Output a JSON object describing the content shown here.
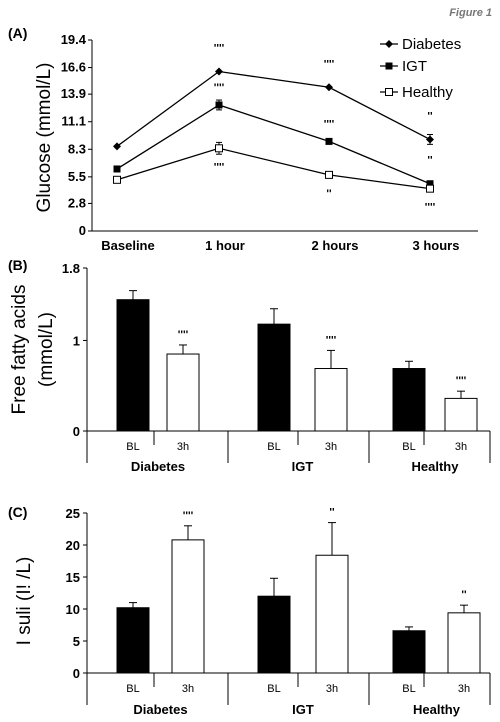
{
  "figure_label": "Figure 1",
  "chart_data": [
    {
      "panel": "(A)",
      "type": "line",
      "categories": [
        "Baseline",
        "1 hour",
        "2 hours",
        "3 hours"
      ],
      "ylabel": "Glucose (mmol/L)",
      "ylim": [
        0,
        19.4
      ],
      "yticks": [
        "0",
        "2.8",
        "5.5",
        "8.3",
        "11.1",
        "13.9",
        "16.6",
        "19.4"
      ],
      "legend_position": "top-right",
      "series": [
        {
          "name": "Diabetes",
          "values": [
            8.6,
            16.2,
            14.6,
            9.3
          ],
          "errors": [
            0,
            0,
            0,
            0.5
          ],
          "marks": [
            "",
            "''''",
            "''''",
            "''"
          ],
          "marker": "diamond"
        },
        {
          "name": "IGT",
          "values": [
            6.3,
            12.8,
            9.1,
            4.8
          ],
          "errors": [
            0,
            0.5,
            0,
            0
          ],
          "marks": [
            "",
            "''''",
            "''''",
            "''"
          ],
          "marker": "square-filled"
        },
        {
          "name": "Healthy",
          "values": [
            5.2,
            8.4,
            5.7,
            4.3
          ],
          "errors": [
            0,
            0.6,
            0,
            0
          ],
          "marks": [
            "",
            "''''",
            "''",
            "''''"
          ],
          "marker": "square-open"
        }
      ]
    },
    {
      "panel": "(B)",
      "type": "bar",
      "ylabel_line1": "Free fatty acids",
      "ylabel_line2": "(mmol/L)",
      "ylim": [
        0,
        1.8
      ],
      "yticks": [
        "0",
        "1",
        "1.8"
      ],
      "groups": [
        {
          "name": "Diabetes",
          "labels": [
            "BL",
            "3h"
          ],
          "values": [
            1.45,
            0.85
          ],
          "errors": [
            0.1,
            0.1
          ],
          "marks": [
            "",
            "''''"
          ]
        },
        {
          "name": "IGT",
          "labels": [
            "BL",
            "3h"
          ],
          "values": [
            1.18,
            0.69
          ],
          "errors": [
            0.17,
            0.2
          ],
          "marks": [
            "",
            "''''"
          ]
        },
        {
          "name": "Healthy",
          "labels": [
            "BL",
            "3h"
          ],
          "values": [
            0.69,
            0.36
          ],
          "errors": [
            0.08,
            0.08
          ],
          "marks": [
            "",
            "''''"
          ]
        }
      ]
    },
    {
      "panel": "(C)",
      "type": "bar",
      "ylabel": "I   suli   (I! /L)",
      "ylim": [
        0,
        25
      ],
      "yticks": [
        "0",
        "5",
        "10",
        "15",
        "20",
        "25"
      ],
      "groups": [
        {
          "name": "Diabetes",
          "labels": [
            "BL",
            "3h"
          ],
          "values": [
            10.2,
            20.8
          ],
          "errors": [
            0.8,
            2.2
          ],
          "marks": [
            "",
            "''''"
          ]
        },
        {
          "name": "IGT",
          "labels": [
            "BL",
            "3h"
          ],
          "values": [
            12.0,
            18.4
          ],
          "errors": [
            2.8,
            5.1
          ],
          "marks": [
            "",
            "''"
          ]
        },
        {
          "name": "Healthy",
          "labels": [
            "BL",
            "3h"
          ],
          "values": [
            6.6,
            9.4
          ],
          "errors": [
            0.6,
            1.2
          ],
          "marks": [
            "",
            "''"
          ]
        }
      ]
    }
  ]
}
